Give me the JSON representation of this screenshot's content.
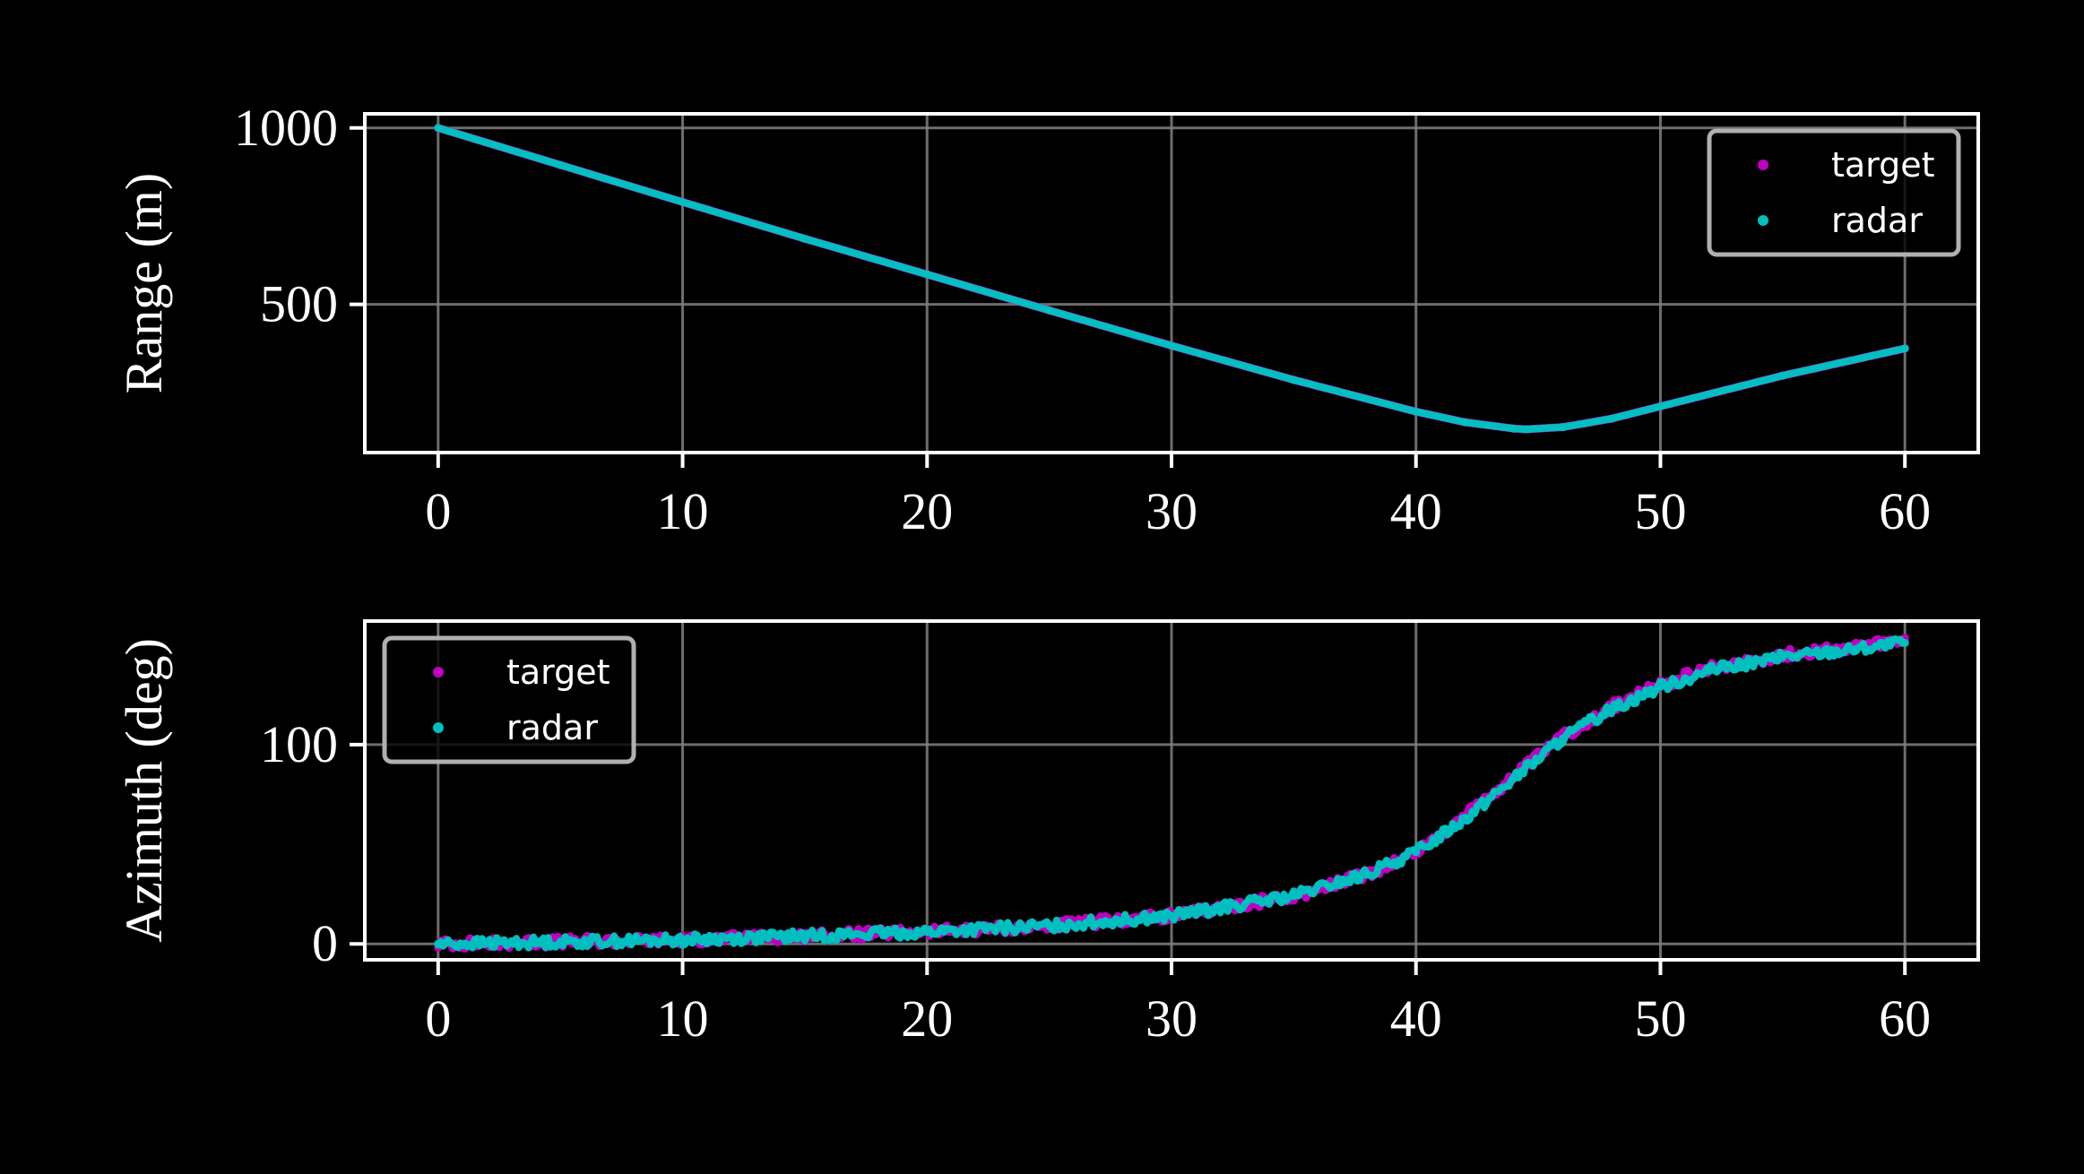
{
  "colors": {
    "background": "#000000",
    "axes": "#ffffff",
    "grid": "#808080",
    "target": "#bf00bf",
    "radar": "#00bfbf",
    "legend_frame": "#b0b0b0"
  },
  "chart_data": [
    {
      "type": "scatter",
      "title": "",
      "xlabel": "",
      "ylabel": "Range (m)",
      "xlim": [
        -3,
        63
      ],
      "ylim": [
        80,
        1040
      ],
      "xticks": [
        0,
        10,
        20,
        30,
        40,
        50,
        60
      ],
      "xtick_labels": [
        "0",
        "10",
        "20",
        "30",
        "40",
        "50",
        "60"
      ],
      "yticks": [
        500,
        1000
      ],
      "ytick_labels": [
        "500",
        "1000"
      ],
      "grid": true,
      "legend": "top-right",
      "series": [
        {
          "name": "target",
          "x": [
            0,
            5,
            10,
            15,
            20,
            25,
            30,
            35,
            40,
            42,
            44,
            44.5,
            46,
            48,
            50,
            55,
            60
          ],
          "y": [
            1000,
            895,
            790,
            686,
            585,
            483,
            383,
            286,
            196,
            166,
            148,
            146,
            152,
            176,
            211,
            298,
            375
          ]
        },
        {
          "name": "radar",
          "x": [
            0,
            5,
            10,
            15,
            20,
            25,
            30,
            35,
            40,
            42,
            44,
            44.5,
            46,
            48,
            50,
            55,
            60
          ],
          "y": [
            1000,
            895,
            790,
            686,
            585,
            483,
            383,
            286,
            196,
            166,
            148,
            146,
            152,
            176,
            211,
            298,
            375
          ]
        }
      ]
    },
    {
      "type": "scatter",
      "title": "",
      "xlabel": "",
      "ylabel": "Azimuth (deg)",
      "xlim": [
        -3,
        63
      ],
      "ylim": [
        -8,
        162
      ],
      "xticks": [
        0,
        10,
        20,
        30,
        40,
        50,
        60
      ],
      "xtick_labels": [
        "0",
        "10",
        "20",
        "30",
        "40",
        "50",
        "60"
      ],
      "yticks": [
        0,
        100
      ],
      "ytick_labels": [
        "0",
        "100"
      ],
      "grid": true,
      "legend": "top-left",
      "series": [
        {
          "name": "target",
          "x": [
            0,
            5,
            10,
            15,
            20,
            25,
            30,
            35,
            38,
            40,
            42,
            44,
            46,
            48,
            50,
            52,
            55,
            58,
            60
          ],
          "y": [
            0,
            1,
            2,
            4,
            6,
            9,
            14,
            24,
            35,
            46,
            64,
            84,
            104,
            119,
            130,
            138,
            145,
            149,
            152
          ]
        },
        {
          "name": "radar",
          "x": [
            0,
            5,
            10,
            15,
            20,
            25,
            30,
            35,
            38,
            40,
            42,
            44,
            46,
            48,
            50,
            52,
            55,
            58,
            60
          ],
          "y": [
            0,
            1,
            2,
            4,
            6,
            9,
            14,
            24,
            35,
            46,
            63,
            83,
            103,
            118,
            129,
            137,
            144,
            148,
            151
          ]
        }
      ]
    }
  ]
}
